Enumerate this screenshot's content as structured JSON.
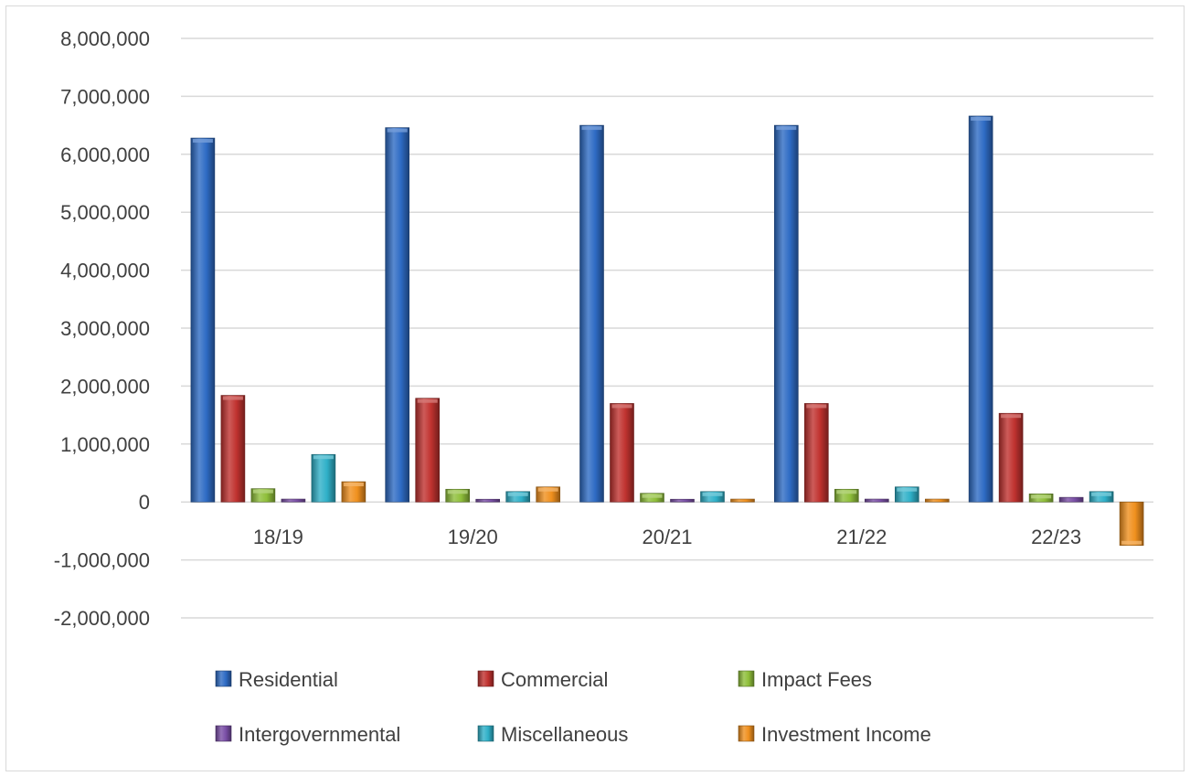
{
  "chart_data": {
    "type": "bar",
    "categories": [
      "18/19",
      "19/20",
      "20/21",
      "21/22",
      "22/23"
    ],
    "ylim": [
      -2000000,
      8000000
    ],
    "yticks": [
      8000000,
      7000000,
      6000000,
      5000000,
      4000000,
      3000000,
      2000000,
      1000000,
      0,
      -1000000,
      -2000000
    ],
    "ytick_labels": [
      "8,000,000",
      "7,000,000",
      "6,000,000",
      "5,000,000",
      "4,000,000",
      "3,000,000",
      "2,000,000",
      "1,000,000",
      "0",
      "-1,000,000",
      "-2,000,000"
    ],
    "grid": true,
    "legend_position": "bottom",
    "series": [
      {
        "name": "Residential",
        "color": "#2e6bc4",
        "values": [
          6280000,
          6460000,
          6500000,
          6500000,
          6660000
        ]
      },
      {
        "name": "Commercial",
        "color": "#c0322f",
        "values": [
          1840000,
          1790000,
          1700000,
          1700000,
          1530000
        ]
      },
      {
        "name": "Impact Fees",
        "color": "#8fbf3a",
        "values": [
          230000,
          220000,
          150000,
          220000,
          140000
        ]
      },
      {
        "name": "Intergovernmental",
        "color": "#7a4fa6",
        "values": [
          50000,
          40000,
          40000,
          50000,
          80000
        ]
      },
      {
        "name": "Miscellaneous",
        "color": "#2fb0c8",
        "values": [
          820000,
          180000,
          180000,
          260000,
          180000
        ]
      },
      {
        "name": "Investment Income",
        "color": "#f0901e",
        "values": [
          350000,
          260000,
          50000,
          50000,
          -750000
        ]
      }
    ]
  }
}
